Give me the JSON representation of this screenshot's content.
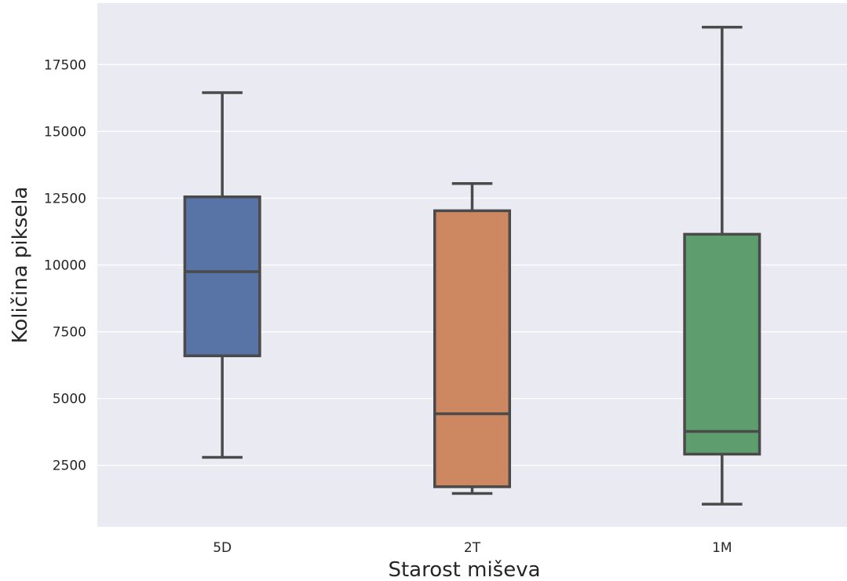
{
  "chart_data": {
    "type": "box",
    "xlabel": "Starost miševa",
    "ylabel": "Količina piksela",
    "categories": [
      "5D",
      "2T",
      "1M"
    ],
    "ylim": [
      200,
      19800
    ],
    "yticks": [
      2500,
      5000,
      7500,
      10000,
      12500,
      15000,
      17500
    ],
    "ytick_labels": [
      "2500",
      "5000",
      "7500",
      "10000",
      "12500",
      "15000",
      "17500"
    ],
    "grid": true,
    "boxes": [
      {
        "category": "5D",
        "whisker_low": 2800,
        "q1": 6600,
        "median": 9750,
        "q3": 12550,
        "whisker_high": 16450,
        "color": "#5874A6"
      },
      {
        "category": "2T",
        "whisker_low": 1450,
        "q1": 1700,
        "median": 4430,
        "q3": 12030,
        "whisker_high": 13050,
        "color": "#CD8862"
      },
      {
        "category": "1M",
        "whisker_low": 1050,
        "q1": 2920,
        "median": 3770,
        "q3": 11150,
        "whisker_high": 18900,
        "color": "#5E9E6E"
      }
    ],
    "colors": {
      "background": "#EAEAF2",
      "grid": "#FFFFFF",
      "line": "#4A4A4A"
    }
  }
}
